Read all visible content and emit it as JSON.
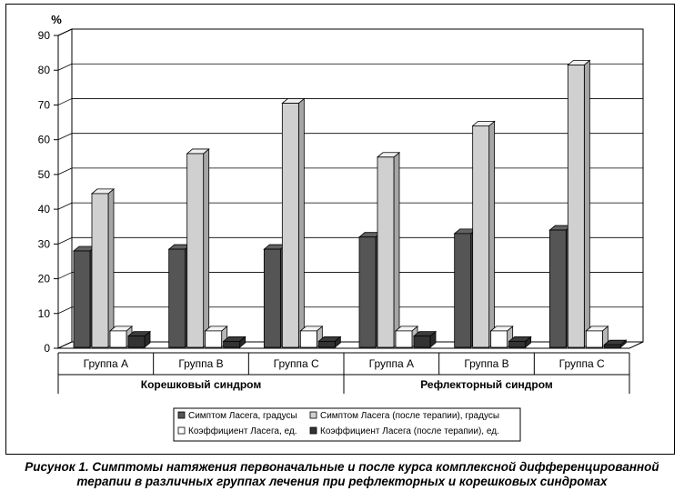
{
  "chart_data": {
    "type": "bar",
    "y_unit": "%",
    "ylim": [
      0,
      90
    ],
    "y_ticks": [
      0,
      10,
      20,
      30,
      40,
      50,
      60,
      70,
      80,
      90
    ],
    "grid": true,
    "categories": [
      "Группа А",
      "Группа В",
      "Группа С",
      "Группа А",
      "Группа В",
      "Группа С"
    ],
    "category_groups": [
      {
        "label": "Корешковый синдром",
        "span": 3
      },
      {
        "label": "Рефлекторный синдром",
        "span": 3
      }
    ],
    "series": [
      {
        "name": "Симптом Ласега, градусы",
        "color": "#555555",
        "values": [
          28,
          28.5,
          28.5,
          32,
          33,
          34
        ]
      },
      {
        "name": "Симптом Ласега (после терапии), градусы",
        "color": "#d0d0d0",
        "values": [
          44.5,
          56,
          70.5,
          55,
          64,
          81.5
        ]
      },
      {
        "name": "Коэффициент  Ласега, ед.",
        "color": "#ffffff",
        "values": [
          5,
          5,
          5,
          5,
          5,
          5
        ]
      },
      {
        "name": "Коэффициент  Ласега (после терапии), ед.",
        "color": "#333333",
        "values": [
          3.5,
          2,
          2,
          3.5,
          2,
          1
        ]
      }
    ],
    "legend_position": "bottom"
  },
  "caption": {
    "line1": "Рисунок 1. Симптомы натяжения первоначальные и после курса комплексной дифференцированной",
    "line2": "терапии в различных группах лечения при рефлекторных и корешковых синдромах"
  }
}
